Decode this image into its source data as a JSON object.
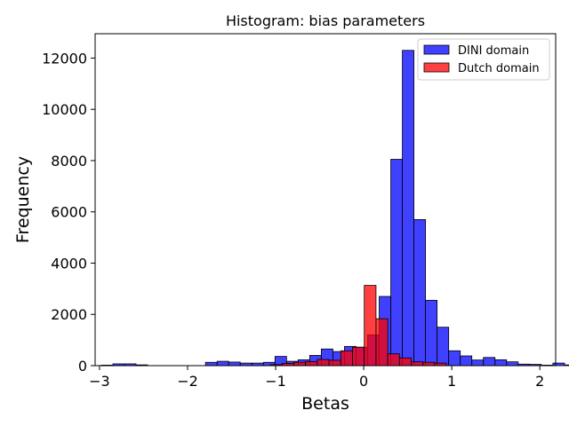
{
  "chart_data": {
    "type": "bar",
    "title": "Histogram: bias parameters",
    "xlabel": "Betas",
    "ylabel": "Frequency",
    "xlim": [
      -3.05,
      2.18
    ],
    "ylim": [
      0,
      12950
    ],
    "xticks": [
      {
        "value": -3,
        "label": "−3"
      },
      {
        "value": -2,
        "label": "−2"
      },
      {
        "value": -1,
        "label": "−1"
      },
      {
        "value": 0,
        "label": "0"
      },
      {
        "value": 1,
        "label": "1"
      },
      {
        "value": 2,
        "label": "2"
      }
    ],
    "yticks": [
      {
        "value": 0,
        "label": "0"
      },
      {
        "value": 2000,
        "label": "2000"
      },
      {
        "value": 4000,
        "label": "4000"
      },
      {
        "value": 6000,
        "label": "6000"
      },
      {
        "value": 8000,
        "label": "8000"
      },
      {
        "value": 10000,
        "label": "10000"
      },
      {
        "value": 12000,
        "label": "12000"
      }
    ],
    "legend_position": "top-right",
    "series": [
      {
        "name": "DINI domain",
        "color": "#0000ff",
        "alpha": 0.75,
        "bin_start": -2.98,
        "bin_width": 0.1315,
        "values": [
          20,
          70,
          70,
          30,
          0,
          0,
          0,
          0,
          0,
          130,
          170,
          140,
          100,
          100,
          130,
          360,
          170,
          230,
          400,
          650,
          550,
          750,
          720,
          1200,
          2700,
          8050,
          12300,
          5700,
          2550,
          1500,
          580,
          380,
          220,
          320,
          230,
          150,
          60,
          50,
          20,
          100,
          30,
          10,
          30
        ]
      },
      {
        "name": "Dutch domain",
        "color": "#ff0000",
        "alpha": 0.75,
        "bin_start": -1.06,
        "bin_width": 0.1333,
        "values": [
          40,
          90,
          130,
          160,
          240,
          210,
          580,
          720,
          3130,
          1830,
          460,
          300,
          150,
          130,
          100
        ]
      }
    ]
  }
}
